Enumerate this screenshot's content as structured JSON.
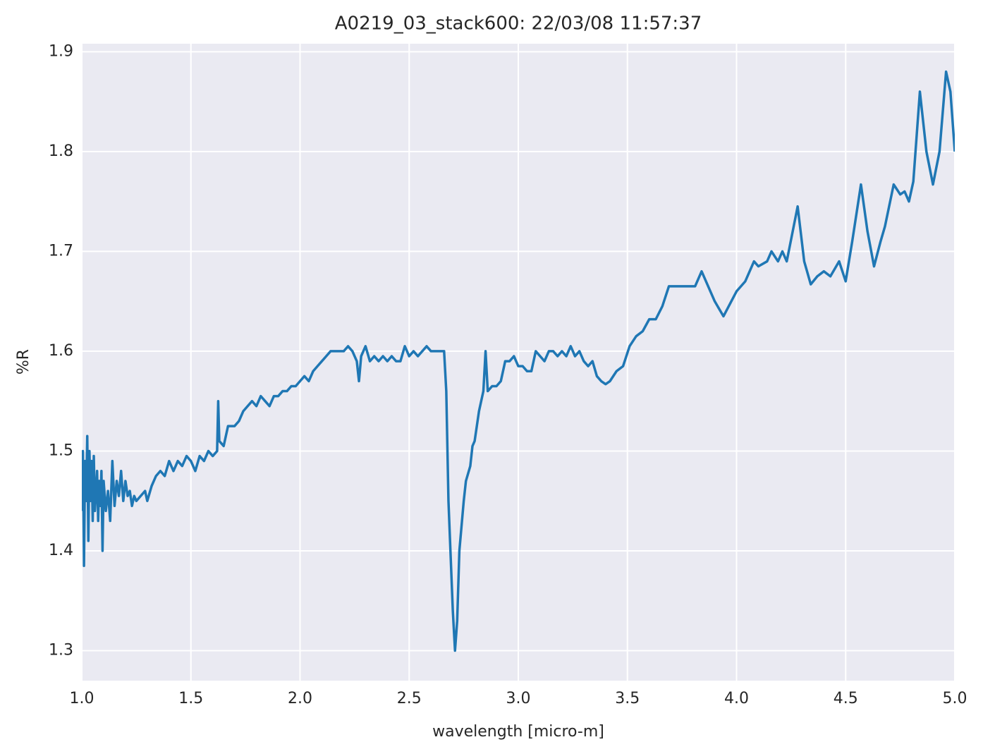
{
  "chart_data": {
    "type": "line",
    "title": "A0219_03_stack600:  22/03/08 11:57:37",
    "xlabel": "wavelength [micro-m]",
    "ylabel": "%R",
    "xlim": [
      1,
      5
    ],
    "ylim": [
      1.27,
      1.908
    ],
    "xticks": [
      {
        "value": 1,
        "label": "1.0"
      },
      1.5,
      {
        "value": 2,
        "label": "2.0"
      },
      2.5,
      {
        "value": 3,
        "label": "3.0"
      },
      3.5,
      {
        "value": 4,
        "label": "4.0"
      },
      4.5,
      {
        "value": 5,
        "label": "5.0"
      }
    ],
    "yticks": [
      1.3,
      1.4,
      1.5,
      1.6,
      1.7,
      1.8,
      1.9
    ],
    "grid": true,
    "background": "#eaeaf2",
    "series": [
      {
        "color": "#1f77b4",
        "x": [
          1.0,
          1.005,
          1.01,
          1.015,
          1.02,
          1.025,
          1.03,
          1.035,
          1.04,
          1.045,
          1.05,
          1.055,
          1.06,
          1.07,
          1.075,
          1.08,
          1.085,
          1.09,
          1.095,
          1.1,
          1.11,
          1.12,
          1.13,
          1.14,
          1.15,
          1.16,
          1.17,
          1.18,
          1.19,
          1.2,
          1.21,
          1.22,
          1.23,
          1.24,
          1.25,
          1.27,
          1.29,
          1.3,
          1.32,
          1.34,
          1.36,
          1.38,
          1.4,
          1.42,
          1.44,
          1.46,
          1.48,
          1.5,
          1.52,
          1.54,
          1.56,
          1.58,
          1.6,
          1.62,
          1.625,
          1.63,
          1.65,
          1.67,
          1.7,
          1.72,
          1.74,
          1.76,
          1.78,
          1.8,
          1.82,
          1.84,
          1.86,
          1.88,
          1.9,
          1.92,
          1.94,
          1.96,
          1.98,
          2.0,
          2.02,
          2.04,
          2.06,
          2.08,
          2.1,
          2.12,
          2.14,
          2.16,
          2.18,
          2.2,
          2.22,
          2.24,
          2.26,
          2.27,
          2.28,
          2.3,
          2.32,
          2.34,
          2.36,
          2.38,
          2.4,
          2.42,
          2.44,
          2.46,
          2.48,
          2.5,
          2.52,
          2.54,
          2.56,
          2.58,
          2.6,
          2.62,
          2.64,
          2.66,
          2.67,
          2.68,
          2.7,
          2.71,
          2.72,
          2.73,
          2.75,
          2.76,
          2.78,
          2.79,
          2.8,
          2.82,
          2.84,
          2.85,
          2.86,
          2.88,
          2.9,
          2.92,
          2.94,
          2.96,
          2.98,
          3.0,
          3.02,
          3.04,
          3.06,
          3.08,
          3.1,
          3.12,
          3.14,
          3.16,
          3.18,
          3.2,
          3.22,
          3.24,
          3.26,
          3.28,
          3.3,
          3.32,
          3.34,
          3.36,
          3.38,
          3.4,
          3.42,
          3.45,
          3.48,
          3.51,
          3.54,
          3.57,
          3.6,
          3.63,
          3.66,
          3.69,
          3.71,
          3.76,
          3.81,
          3.84,
          3.9,
          3.94,
          4.0,
          4.04,
          4.08,
          4.1,
          4.14,
          4.16,
          4.19,
          4.21,
          4.23,
          4.28,
          4.31,
          4.34,
          4.37,
          4.4,
          4.43,
          4.47,
          4.5,
          4.53,
          4.57,
          4.6,
          4.63,
          4.66,
          4.68,
          4.72,
          4.75,
          4.77,
          4.79,
          4.81,
          4.84,
          4.87,
          4.9,
          4.93,
          4.96,
          4.98,
          5.0
        ],
        "values": [
          1.44,
          1.5,
          1.385,
          1.49,
          1.45,
          1.515,
          1.41,
          1.5,
          1.45,
          1.49,
          1.43,
          1.495,
          1.44,
          1.48,
          1.43,
          1.47,
          1.445,
          1.48,
          1.4,
          1.47,
          1.44,
          1.46,
          1.43,
          1.49,
          1.445,
          1.47,
          1.455,
          1.48,
          1.45,
          1.47,
          1.455,
          1.46,
          1.445,
          1.455,
          1.45,
          1.455,
          1.46,
          1.45,
          1.465,
          1.475,
          1.48,
          1.475,
          1.49,
          1.48,
          1.49,
          1.485,
          1.495,
          1.49,
          1.48,
          1.495,
          1.49,
          1.5,
          1.495,
          1.5,
          1.55,
          1.51,
          1.505,
          1.525,
          1.525,
          1.53,
          1.54,
          1.545,
          1.55,
          1.545,
          1.555,
          1.55,
          1.545,
          1.555,
          1.555,
          1.56,
          1.56,
          1.565,
          1.565,
          1.57,
          1.575,
          1.57,
          1.58,
          1.585,
          1.59,
          1.595,
          1.6,
          1.6,
          1.6,
          1.6,
          1.605,
          1.6,
          1.59,
          1.57,
          1.595,
          1.605,
          1.59,
          1.595,
          1.59,
          1.595,
          1.59,
          1.595,
          1.59,
          1.59,
          1.605,
          1.595,
          1.6,
          1.595,
          1.6,
          1.605,
          1.6,
          1.6,
          1.6,
          1.6,
          1.56,
          1.45,
          1.34,
          1.3,
          1.33,
          1.4,
          1.45,
          1.47,
          1.485,
          1.505,
          1.51,
          1.54,
          1.56,
          1.6,
          1.56,
          1.565,
          1.565,
          1.57,
          1.59,
          1.59,
          1.595,
          1.585,
          1.585,
          1.58,
          1.58,
          1.6,
          1.595,
          1.59,
          1.6,
          1.6,
          1.595,
          1.6,
          1.595,
          1.605,
          1.595,
          1.6,
          1.59,
          1.585,
          1.59,
          1.575,
          1.57,
          1.567,
          1.57,
          1.58,
          1.585,
          1.605,
          1.615,
          1.62,
          1.632,
          1.632,
          1.645,
          1.665,
          1.665,
          1.665,
          1.665,
          1.68,
          1.65,
          1.635,
          1.66,
          1.67,
          1.69,
          1.685,
          1.69,
          1.7,
          1.69,
          1.7,
          1.69,
          1.745,
          1.69,
          1.667,
          1.675,
          1.68,
          1.675,
          1.69,
          1.67,
          1.71,
          1.767,
          1.72,
          1.685,
          1.71,
          1.725,
          1.767,
          1.757,
          1.76,
          1.75,
          1.77,
          1.86,
          1.8,
          1.767,
          1.8,
          1.88,
          1.86,
          1.8
        ]
      }
    ]
  }
}
